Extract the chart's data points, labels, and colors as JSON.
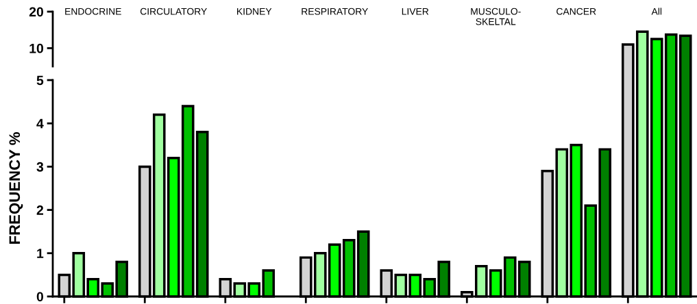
{
  "chart_data": [
    {
      "type": "bar",
      "categories": [
        "ENDOCRINE",
        "CIRCULATORY",
        "KIDNEY",
        "RESPIRATORY",
        "LIVER",
        "MUSCULO-\nSKELTAL",
        "CANCER",
        "All"
      ],
      "series": [
        {
          "color": "#d3d3d3",
          "values": [
            null,
            null,
            null,
            null,
            null,
            null,
            null,
            11
          ]
        },
        {
          "color": "#a0ffa0",
          "values": [
            null,
            null,
            null,
            null,
            null,
            null,
            null,
            14.5
          ]
        },
        {
          "color": "#00ff00",
          "values": [
            null,
            null,
            null,
            null,
            null,
            null,
            null,
            12.5
          ]
        },
        {
          "color": "#00c000",
          "values": [
            null,
            null,
            null,
            null,
            null,
            null,
            null,
            13.7
          ]
        },
        {
          "color": "#008000",
          "values": [
            null,
            null,
            null,
            null,
            null,
            null,
            null,
            13.4
          ]
        }
      ],
      "ylim": [
        5,
        20
      ],
      "yticks": [
        10,
        20
      ],
      "tick_labels": "y",
      "grid": false,
      "legend": false
    },
    {
      "type": "bar",
      "ylabel": "FREQUENCY %",
      "categories": [
        null,
        null,
        null,
        null,
        null,
        null,
        null,
        null
      ],
      "series": [
        {
          "color": "#d3d3d3",
          "values": [
            0.5,
            3.0,
            0.4,
            0.9,
            0.6,
            0.1,
            2.9,
            null
          ]
        },
        {
          "color": "#a0ffa0",
          "values": [
            1.0,
            4.2,
            0.3,
            1.0,
            0.5,
            0.7,
            3.4,
            null
          ]
        },
        {
          "color": "#00ff00",
          "values": [
            0.4,
            3.2,
            0.3,
            1.2,
            0.5,
            0.6,
            3.5,
            null
          ]
        },
        {
          "color": "#00c000",
          "values": [
            0.3,
            4.4,
            0.6,
            1.3,
            0.4,
            0.9,
            2.1,
            null
          ]
        },
        {
          "color": "#008000",
          "values": [
            0.8,
            3.8,
            null,
            1.5,
            0.8,
            0.8,
            3.4,
            null
          ]
        }
      ],
      "ylim": [
        0,
        5
      ],
      "yticks": [
        0,
        1,
        2,
        3,
        4,
        5
      ],
      "grid": false,
      "legend": false
    }
  ]
}
